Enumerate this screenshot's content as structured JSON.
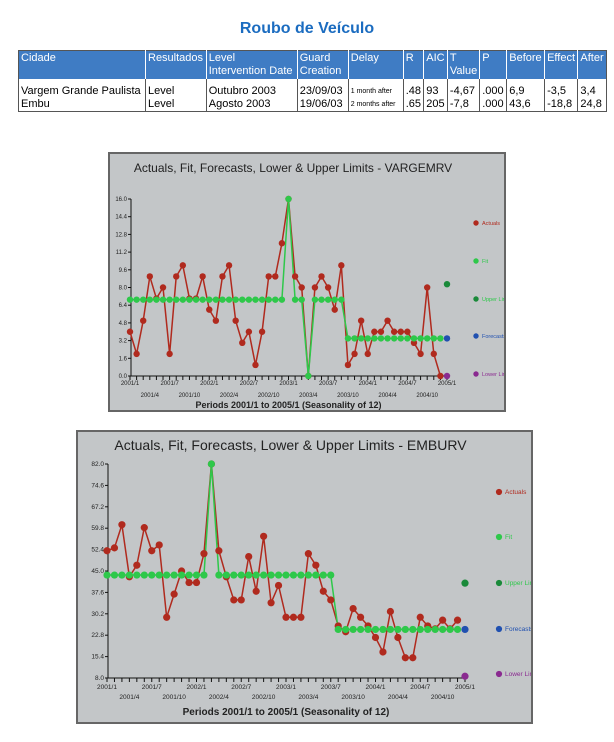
{
  "page_title": "Roubo de Veículo",
  "table": {
    "headers": [
      "Cidade",
      "Resultados",
      "Level Intervention Date",
      "Guard Creation",
      "Delay",
      "R",
      "AIC",
      "T Value",
      "P",
      "Before",
      "Effect",
      "After"
    ],
    "rows": [
      [
        "Vargem Grande Paulista",
        "Level",
        "Outubro 2003",
        "23/09/03",
        "1 month after",
        ".48",
        "93",
        "-4,67",
        ".000",
        "6,9",
        "-3,5",
        "3,4"
      ],
      [
        "Embu",
        "Level",
        "Agosto 2003",
        "19/06/03",
        "2 months after",
        ".65",
        "205",
        "-7,8",
        ".000",
        "43,6",
        "-18,8",
        "24,8"
      ]
    ]
  },
  "colors": {
    "actuals": "#b02a1e",
    "fit": "#2ec84a",
    "upper": "#1a8a3a",
    "forecast": "#2050b0",
    "lower": "#8a2a90",
    "header": "#3f7cc4",
    "title": "#1b6cc0"
  },
  "chart_data": [
    {
      "type": "line",
      "title": "Actuals, Fit, Forecasts, Lower & Upper Limits - VARGEMRV",
      "xlabel": "Periods 2001/1 to 2005/1 (Seasonality of 12)",
      "ylim": [
        0,
        16
      ],
      "yticks": [
        "0.0",
        "1.6",
        "3.2",
        "4.8",
        "6.4",
        "8.0",
        "9.6",
        "11.2",
        "12.8",
        "14.4",
        "16.0"
      ],
      "xticks_row1": [
        "2001/1",
        "2001/7",
        "2002/1",
        "2002/7",
        "2003/1",
        "2003/7",
        "2004/1",
        "2004/7",
        "2005/1"
      ],
      "xticks_row2": [
        "2001/4",
        "2001/10",
        "2002/4",
        "2002/10",
        "2003/4",
        "2003/10",
        "2004/4",
        "2004/10"
      ],
      "legend": [
        "Actuals",
        "Fit",
        "Upper Limit",
        "Forecasts",
        "Lower Limit"
      ],
      "actuals": [
        4,
        2,
        5,
        9,
        7,
        8,
        2,
        9,
        10,
        7,
        7,
        9,
        6,
        5,
        9,
        10,
        5,
        3,
        4,
        1,
        4,
        9,
        9,
        12,
        16,
        9,
        8,
        0,
        8,
        9,
        8,
        6,
        10,
        1,
        2,
        5,
        2,
        4,
        4,
        5,
        4,
        4,
        4,
        3,
        2,
        8,
        2,
        0
      ],
      "fit": [
        6.9,
        6.9,
        6.9,
        6.9,
        6.9,
        6.9,
        6.9,
        6.9,
        6.9,
        6.9,
        6.9,
        6.9,
        6.9,
        6.9,
        6.9,
        6.9,
        6.9,
        6.9,
        6.9,
        6.9,
        6.9,
        6.9,
        6.9,
        6.9,
        16,
        6.9,
        6.9,
        0,
        6.9,
        6.9,
        6.9,
        6.9,
        6.9,
        3.4,
        3.4,
        3.4,
        3.4,
        3.4,
        3.4,
        3.4,
        3.4,
        3.4,
        3.4,
        3.4,
        3.4,
        3.4,
        3.4,
        3.4
      ],
      "forecast": 3.4,
      "upper_limit": 8.3,
      "lower_limit": 0
    },
    {
      "type": "line",
      "title": "Actuals, Fit, Forecasts, Lower & Upper Limits - EMBURV",
      "xlabel": "Periods 2001/1 to 2005/1 (Seasonality of 12)",
      "ylim": [
        8,
        82
      ],
      "yticks": [
        "8.0",
        "15.4",
        "22.8",
        "30.2",
        "37.6",
        "45.0",
        "52.4",
        "59.8",
        "67.2",
        "74.6",
        "82.0"
      ],
      "xticks_row1": [
        "2001/1",
        "2001/7",
        "2002/1",
        "2002/7",
        "2003/1",
        "2003/7",
        "2004/1",
        "2004/7",
        "2005/1"
      ],
      "xticks_row2": [
        "2001/4",
        "2001/10",
        "2002/4",
        "2002/10",
        "2003/4",
        "2003/10",
        "2004/4",
        "2004/10"
      ],
      "legend": [
        "Actuals",
        "Fit",
        "Upper Limit",
        "Forecasts",
        "Lower Limit"
      ],
      "actuals": [
        52,
        53,
        61,
        43,
        47,
        60,
        52,
        54,
        29,
        37,
        45,
        41,
        41,
        51,
        82,
        52,
        43,
        35,
        35,
        50,
        38,
        57,
        34,
        40,
        29,
        29,
        29,
        51,
        47,
        38,
        35,
        26,
        24,
        32,
        29,
        26,
        22,
        17,
        31,
        22,
        15,
        15,
        29,
        26,
        25,
        28,
        25,
        28
      ],
      "fit": [
        43.6,
        43.6,
        43.6,
        43.6,
        43.6,
        43.6,
        43.6,
        43.6,
        43.6,
        43.6,
        43.6,
        43.6,
        43.6,
        43.6,
        82,
        43.6,
        43.6,
        43.6,
        43.6,
        43.6,
        43.6,
        43.6,
        43.6,
        43.6,
        43.6,
        43.6,
        43.6,
        43.6,
        43.6,
        43.6,
        43.6,
        24.8,
        24.8,
        24.8,
        24.8,
        24.8,
        24.8,
        24.8,
        24.8,
        24.8,
        24.8,
        24.8,
        24.8,
        24.8,
        24.8,
        24.8,
        24.8,
        24.8
      ],
      "forecast": 24.8,
      "upper_limit": 40.8,
      "lower_limit": 8.6
    }
  ]
}
